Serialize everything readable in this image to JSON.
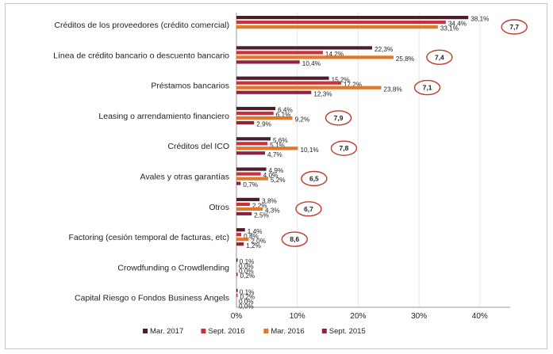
{
  "chart_data": {
    "type": "bar",
    "orientation": "horizontal",
    "categories": [
      "Créditos de los proveedores (crédito comercial)",
      "Línea de crédito bancario o descuento bancario",
      "Préstamos bancarios",
      "Leasing o arrendamiento financiero",
      "Créditos del ICO",
      "Avales y otras garantías",
      "Otros",
      "Factoring (cesión temporal de facturas, etc)",
      "Crowdfunding o Crowdlending",
      "Capital Riesgo o Fondos Business Angels"
    ],
    "series": [
      {
        "name": "Mar. 2017",
        "color": "#4a1f2a",
        "values": [
          38.1,
          22.3,
          15.2,
          6.4,
          5.6,
          4.9,
          3.8,
          1.4,
          0.1,
          0.1
        ]
      },
      {
        "name": "Sept. 2016",
        "color": "#c8323a",
        "values": [
          34.4,
          14.2,
          17.2,
          6.1,
          5.1,
          4.0,
          2.2,
          0.8,
          0.0,
          0.2
        ]
      },
      {
        "name": "Mar. 2016",
        "color": "#e2772a",
        "values": [
          33.1,
          25.8,
          23.8,
          9.2,
          10.1,
          5.2,
          4.3,
          2.0,
          0.0,
          0.0
        ]
      },
      {
        "name": "Sept. 2015",
        "color": "#8e2340",
        "values": [
          null,
          10.4,
          12.3,
          2.9,
          4.7,
          0.7,
          2.5,
          1.2,
          0.2,
          0.0
        ]
      }
    ],
    "value_labels": [
      [
        "38,1%",
        "34,4%",
        "33,1%",
        ""
      ],
      [
        "22,3%",
        "14,2%",
        "25,8%",
        "10,4%"
      ],
      [
        "15,2%",
        "17,2%",
        "23,8%",
        "12,3%"
      ],
      [
        "6,4%",
        "6,1%",
        "9,2%",
        "2,9%"
      ],
      [
        "5,6%",
        "5,1%",
        "10,1%",
        "4,7%"
      ],
      [
        "4,9%",
        "4,0%",
        "5,2%",
        "0,7%"
      ],
      [
        "3,8%",
        "2,2%",
        "4,3%",
        "2,5%"
      ],
      [
        "1,4%",
        "0,8%",
        "2,0%",
        "1,2%"
      ],
      [
        "0,1%",
        "0,0%",
        "0,0%",
        "0,2%"
      ],
      [
        "0,1%",
        "0,2%",
        "0,0%",
        "0,0%"
      ]
    ],
    "circled_values": [
      "7,7",
      "7,4",
      "7,1",
      "7,9",
      "7,8",
      "6,5",
      "6,7",
      "8,6",
      "",
      ""
    ],
    "xlim": [
      0,
      45
    ],
    "xticks": [
      0,
      10,
      20,
      30,
      40
    ],
    "xtick_labels": [
      "0%",
      "10%",
      "20%",
      "30%",
      "40%"
    ],
    "xlabel": "",
    "ylabel": "",
    "title": "",
    "grid": true,
    "legend_position": "bottom",
    "circle_color": "#c0392b"
  }
}
